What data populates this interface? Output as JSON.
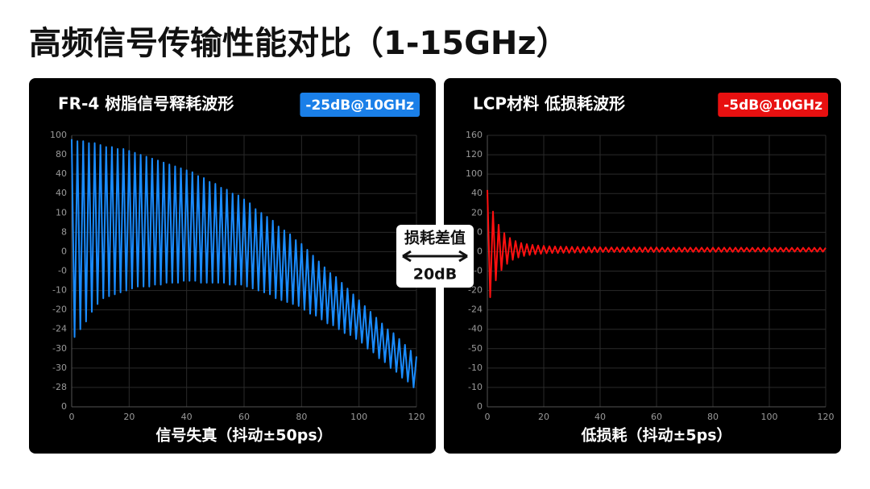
{
  "title": "高频信号传输性能对比（1-15GHz）",
  "middle": {
    "label": "损耗差值",
    "value": "20dB"
  },
  "chart_data": [
    {
      "type": "line",
      "title": "FR-4 树脂信号释耗波形",
      "annotation": "-25dB@10GHz",
      "annotation_color": "#1a7fe8",
      "color": "#1a8cff",
      "xlabel": "信号失真（抖动±50ps）",
      "grid": true,
      "xlim": [
        0,
        120
      ],
      "xticks": [
        0,
        20,
        40,
        60,
        80,
        100,
        120
      ],
      "ylim": [
        -80,
        60
      ],
      "yticks": [
        {
          "value": 60,
          "label": "100"
        },
        {
          "value": 50,
          "label": "80"
        },
        {
          "value": 40,
          "label": "40"
        },
        {
          "value": 30,
          "label": "40"
        },
        {
          "value": 20,
          "label": "10"
        },
        {
          "value": 10,
          "label": "8"
        },
        0,
        {
          "value": -10,
          "label": "-0"
        },
        {
          "value": -20,
          "label": "-10"
        },
        {
          "value": -30,
          "label": "-20"
        },
        {
          "value": -40,
          "label": "-24"
        },
        {
          "value": -50,
          "label": "-30"
        },
        {
          "value": -60,
          "label": "-30"
        },
        {
          "value": -70,
          "label": "-28"
        },
        {
          "value": -80,
          "label": "0"
        }
      ],
      "x": [
        0,
        1,
        2,
        3,
        4,
        5,
        6,
        7,
        8,
        9,
        10,
        11,
        12,
        13,
        14,
        15,
        16,
        17,
        18,
        19,
        20,
        21,
        22,
        23,
        24,
        25,
        26,
        27,
        28,
        29,
        30,
        31,
        32,
        33,
        34,
        35,
        36,
        37,
        38,
        39,
        40,
        41,
        42,
        43,
        44,
        45,
        46,
        47,
        48,
        49,
        50,
        51,
        52,
        53,
        54,
        55,
        56,
        57,
        58,
        59,
        60,
        61,
        62,
        63,
        64,
        65,
        66,
        67,
        68,
        69,
        70,
        71,
        72,
        73,
        74,
        75,
        76,
        77,
        78,
        79,
        80,
        81,
        82,
        83,
        84,
        85,
        86,
        87,
        88,
        89,
        90,
        91,
        92,
        93,
        94,
        95,
        96,
        97,
        98,
        99,
        100,
        101,
        102,
        103,
        104,
        105,
        106,
        107,
        108,
        109,
        110,
        111,
        112,
        113,
        114,
        115,
        116,
        117,
        118,
        119,
        120
      ],
      "values": [
        58,
        -44,
        57,
        -40,
        57,
        -36,
        56,
        -31,
        56,
        -27,
        55,
        -24,
        54,
        -23,
        54,
        -22,
        53,
        -21,
        53,
        -20,
        52,
        -19,
        51,
        -18,
        50,
        -18,
        49,
        -18,
        48,
        -17,
        47,
        -17,
        46,
        -16,
        45,
        -16,
        44,
        -16,
        43,
        -15,
        42,
        -15,
        41,
        -15,
        39,
        -16,
        38,
        -16,
        36,
        -16,
        35,
        -16,
        33,
        -16,
        32,
        -17,
        30,
        -17,
        29,
        -17,
        27,
        -18,
        25,
        -19,
        22,
        -20,
        20,
        -21,
        18,
        -22,
        16,
        -24,
        13,
        -25,
        11,
        -26,
        9,
        -27,
        6,
        -28,
        4,
        -30,
        1,
        -32,
        -2,
        -33,
        -5,
        -35,
        -8,
        -37,
        -11,
        -38,
        -13,
        -40,
        -16,
        -42,
        -19,
        -43,
        -22,
        -45,
        -25,
        -47,
        -28,
        -50,
        -31,
        -52,
        -34,
        -55,
        -37,
        -57,
        -40,
        -60,
        -42,
        -62,
        -45,
        -65,
        -48,
        -67,
        -51,
        -70,
        -54
      ]
    },
    {
      "type": "line",
      "title": "LCP材料  低损耗波形",
      "annotation": "-5dB@10GHz",
      "annotation_color": "#e81010",
      "color": "#ff1010",
      "xlabel": "低损耗（抖动±5ps）",
      "grid": true,
      "xlim": [
        0,
        120
      ],
      "xticks": [
        0,
        20,
        40,
        60,
        80,
        100,
        120
      ],
      "ylim": [
        -80,
        60
      ],
      "yticks": [
        {
          "value": 60,
          "label": "160"
        },
        {
          "value": 50,
          "label": "120"
        },
        {
          "value": 40,
          "label": "100"
        },
        {
          "value": 30,
          "label": "40"
        },
        {
          "value": 20,
          "label": "20"
        },
        {
          "value": 10,
          "label": "0"
        },
        0,
        {
          "value": -10,
          "label": "-0"
        },
        {
          "value": -20,
          "label": "-20"
        },
        {
          "value": -30,
          "label": "-24"
        },
        {
          "value": -40,
          "label": "-40"
        },
        {
          "value": -50,
          "label": "-50"
        },
        {
          "value": -60,
          "label": "-10"
        },
        {
          "value": -70,
          "label": "-10"
        },
        {
          "value": -80,
          "label": "0"
        }
      ],
      "x": [
        0,
        1,
        2,
        3,
        4,
        5,
        6,
        7,
        8,
        9,
        10,
        11,
        12,
        13,
        14,
        15,
        16,
        17,
        18,
        19,
        20,
        21,
        22,
        23,
        24,
        25,
        26,
        27,
        28,
        29,
        30,
        31,
        32,
        33,
        34,
        35,
        36,
        37,
        38,
        39,
        40,
        41,
        42,
        43,
        44,
        45,
        46,
        47,
        48,
        49,
        50,
        51,
        52,
        53,
        54,
        55,
        56,
        57,
        58,
        59,
        60,
        61,
        62,
        63,
        64,
        65,
        66,
        67,
        68,
        69,
        70,
        71,
        72,
        73,
        74,
        75,
        76,
        77,
        78,
        79,
        80,
        81,
        82,
        83,
        84,
        85,
        86,
        87,
        88,
        89,
        90,
        91,
        92,
        93,
        94,
        95,
        96,
        97,
        98,
        99,
        100,
        101,
        102,
        103,
        104,
        105,
        106,
        107,
        108,
        109,
        110,
        111,
        112,
        113,
        114,
        115,
        116,
        117,
        118,
        119,
        120
      ],
      "values": [
        31.8,
        -23.5,
        20.7,
        -14.8,
        13.9,
        -9.5,
        9.6,
        -6.3,
        7.1,
        -4.2,
        5.5,
        -3.0,
        4.5,
        -2.2,
        3.9,
        -1.7,
        3.5,
        -1.3,
        3.2,
        -1.1,
        3.0,
        -0.8,
        2.8,
        -0.7,
        2.7,
        -0.7,
        2.6,
        -0.6,
        2.6,
        -0.6,
        2.5,
        -0.5,
        2.5,
        -0.5,
        2.4,
        -0.4,
        2.4,
        -0.4,
        2.4,
        -0.3,
        2.3,
        -0.2,
        2.2,
        -0.2,
        2.2,
        -0.2,
        2.2,
        -0.2,
        2.2,
        -0.2,
        2.2,
        -0.2,
        2.2,
        -0.2,
        2.2,
        -0.2,
        2.2,
        -0.2,
        2.2,
        -0.2,
        2.2,
        -0.1,
        2.1,
        -0.1,
        2.1,
        -0.1,
        2.1,
        -0.1,
        2.1,
        -0.1,
        2.1,
        -0.1,
        2.1,
        -0.1,
        2.1,
        -0.1,
        2.1,
        -0.1,
        2.1,
        -0.1,
        2.1,
        -0.1,
        2.1,
        -0.1,
        2.1,
        -0.1,
        2.1,
        -0.1,
        2.1,
        -0.1,
        2.1,
        0,
        2,
        0,
        2,
        0,
        2,
        0,
        2,
        0,
        2,
        0,
        2,
        0,
        2,
        0,
        2,
        0,
        2,
        0,
        2,
        0,
        2,
        0,
        2,
        0,
        2,
        0,
        2,
        0,
        2
      ]
    }
  ]
}
